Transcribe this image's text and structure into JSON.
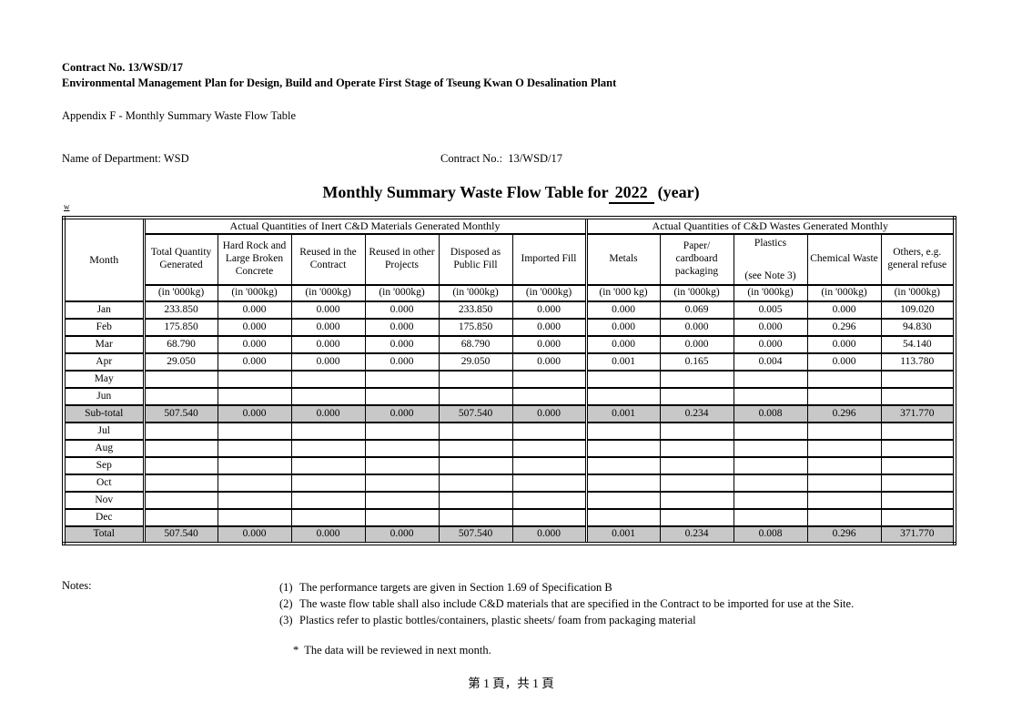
{
  "page": {
    "header": {
      "line1": "Contract No. 13/WSD/17",
      "line2": "Environmental Management Plan for Design, Build and Operate First Stage of Tseung Kwan O Desalination Plant",
      "appendix": "Appendix F - Monthly Summary Waste Flow Table"
    },
    "meta": {
      "department": "Name of Department: WSD",
      "contract": "Contract No.:  13/WSD/17"
    },
    "title": {
      "prefix": "Monthly Summary Waste Flow Table for",
      "year": "2022",
      "suffix": "(year)"
    },
    "stray_mark": "w",
    "footer": "第 1 頁，共 1 頁"
  },
  "table": {
    "month_header": "Month",
    "groups": [
      {
        "label": "Actual Quantities of Inert C&D Materials Generated Monthly",
        "span": 6
      },
      {
        "label": "Actual Quantities of C&D Wastes Generated Monthly",
        "span": 5
      }
    ],
    "columns": [
      {
        "label": "Total Quantity Generated",
        "unit": "(in '000kg)"
      },
      {
        "label": "Hard Rock and Large Broken Concrete",
        "unit": "(in '000kg)"
      },
      {
        "label": "Reused in the Contract",
        "unit": "(in '000kg)"
      },
      {
        "label": "Reused in other Projects",
        "unit": "(in '000kg)"
      },
      {
        "label": "Disposed as Public Fill",
        "unit": "(in '000kg)"
      },
      {
        "label": "Imported Fill",
        "unit": "(in '000kg)"
      },
      {
        "label": "Metals",
        "unit": "(in '000 kg)"
      },
      {
        "label": "Paper/ cardboard packaging",
        "unit": "(in '000kg)"
      },
      {
        "label": "Plastics",
        "note": "(see Note 3)",
        "unit": "(in '000kg)"
      },
      {
        "label": "Chemical Waste",
        "unit": "(in '000kg)"
      },
      {
        "label": "Others, e.g. general refuse",
        "unit": "(in '000kg)"
      }
    ],
    "rows": [
      {
        "month": "Jan",
        "type": "data",
        "values": [
          "233.850",
          "0.000",
          "0.000",
          "0.000",
          "233.850",
          "0.000",
          "0.000",
          "0.069",
          "0.005",
          "0.000",
          "109.020"
        ]
      },
      {
        "month": "Feb",
        "type": "data",
        "values": [
          "175.850",
          "0.000",
          "0.000",
          "0.000",
          "175.850",
          "0.000",
          "0.000",
          "0.000",
          "0.000",
          "0.296",
          "94.830"
        ]
      },
      {
        "month": "Mar",
        "type": "data",
        "values": [
          "68.790",
          "0.000",
          "0.000",
          "0.000",
          "68.790",
          "0.000",
          "0.000",
          "0.000",
          "0.000",
          "0.000",
          "54.140"
        ]
      },
      {
        "month": "Apr",
        "type": "data",
        "values": [
          "29.050",
          "0.000",
          "0.000",
          "0.000",
          "29.050",
          "0.000",
          "0.001",
          "0.165",
          "0.004",
          "0.000",
          "113.780"
        ]
      },
      {
        "month": "May",
        "type": "data",
        "values": [
          "",
          "",
          "",
          "",
          "",
          "",
          "",
          "",
          "",
          "",
          ""
        ]
      },
      {
        "month": "Jun",
        "type": "data",
        "values": [
          "",
          "",
          "",
          "",
          "",
          "",
          "",
          "",
          "",
          "",
          ""
        ]
      },
      {
        "month": "Sub-total",
        "type": "summary",
        "values": [
          "507.540",
          "0.000",
          "0.000",
          "0.000",
          "507.540",
          "0.000",
          "0.001",
          "0.234",
          "0.008",
          "0.296",
          "371.770"
        ]
      },
      {
        "month": "Jul",
        "type": "data",
        "values": [
          "",
          "",
          "",
          "",
          "",
          "",
          "",
          "",
          "",
          "",
          ""
        ]
      },
      {
        "month": "Aug",
        "type": "data",
        "values": [
          "",
          "",
          "",
          "",
          "",
          "",
          "",
          "",
          "",
          "",
          ""
        ]
      },
      {
        "month": "Sep",
        "type": "data",
        "values": [
          "",
          "",
          "",
          "",
          "",
          "",
          "",
          "",
          "",
          "",
          ""
        ]
      },
      {
        "month": "Oct",
        "type": "data",
        "values": [
          "",
          "",
          "",
          "",
          "",
          "",
          "",
          "",
          "",
          "",
          ""
        ]
      },
      {
        "month": "Nov",
        "type": "data",
        "values": [
          "",
          "",
          "",
          "",
          "",
          "",
          "",
          "",
          "",
          "",
          ""
        ]
      },
      {
        "month": "Dec",
        "type": "data",
        "values": [
          "",
          "",
          "",
          "",
          "",
          "",
          "",
          "",
          "",
          "",
          ""
        ]
      },
      {
        "month": "Total",
        "type": "summary",
        "values": [
          "507.540",
          "0.000",
          "0.000",
          "0.000",
          "507.540",
          "0.000",
          "0.001",
          "0.234",
          "0.008",
          "0.296",
          "371.770"
        ]
      }
    ]
  },
  "notes": {
    "label": "Notes:",
    "items": [
      {
        "num": "(1)",
        "text": "The performance targets are given in Section 1.69 of Specification B"
      },
      {
        "num": "(2)",
        "text": "The waste flow table shall also include C&D materials that are specified in the Contract to be imported for use at the Site."
      },
      {
        "num": "(3)",
        "text": "Plastics refer to plastic bottles/containers, plastic sheets/ foam from packaging material"
      }
    ],
    "asterisk_marker": "*",
    "asterisk_text": "The data will be reviewed in next month."
  },
  "colors": {
    "summary_row_bg": "#c8c8c8",
    "border": "#000000",
    "page_bg": "#ffffff"
  }
}
